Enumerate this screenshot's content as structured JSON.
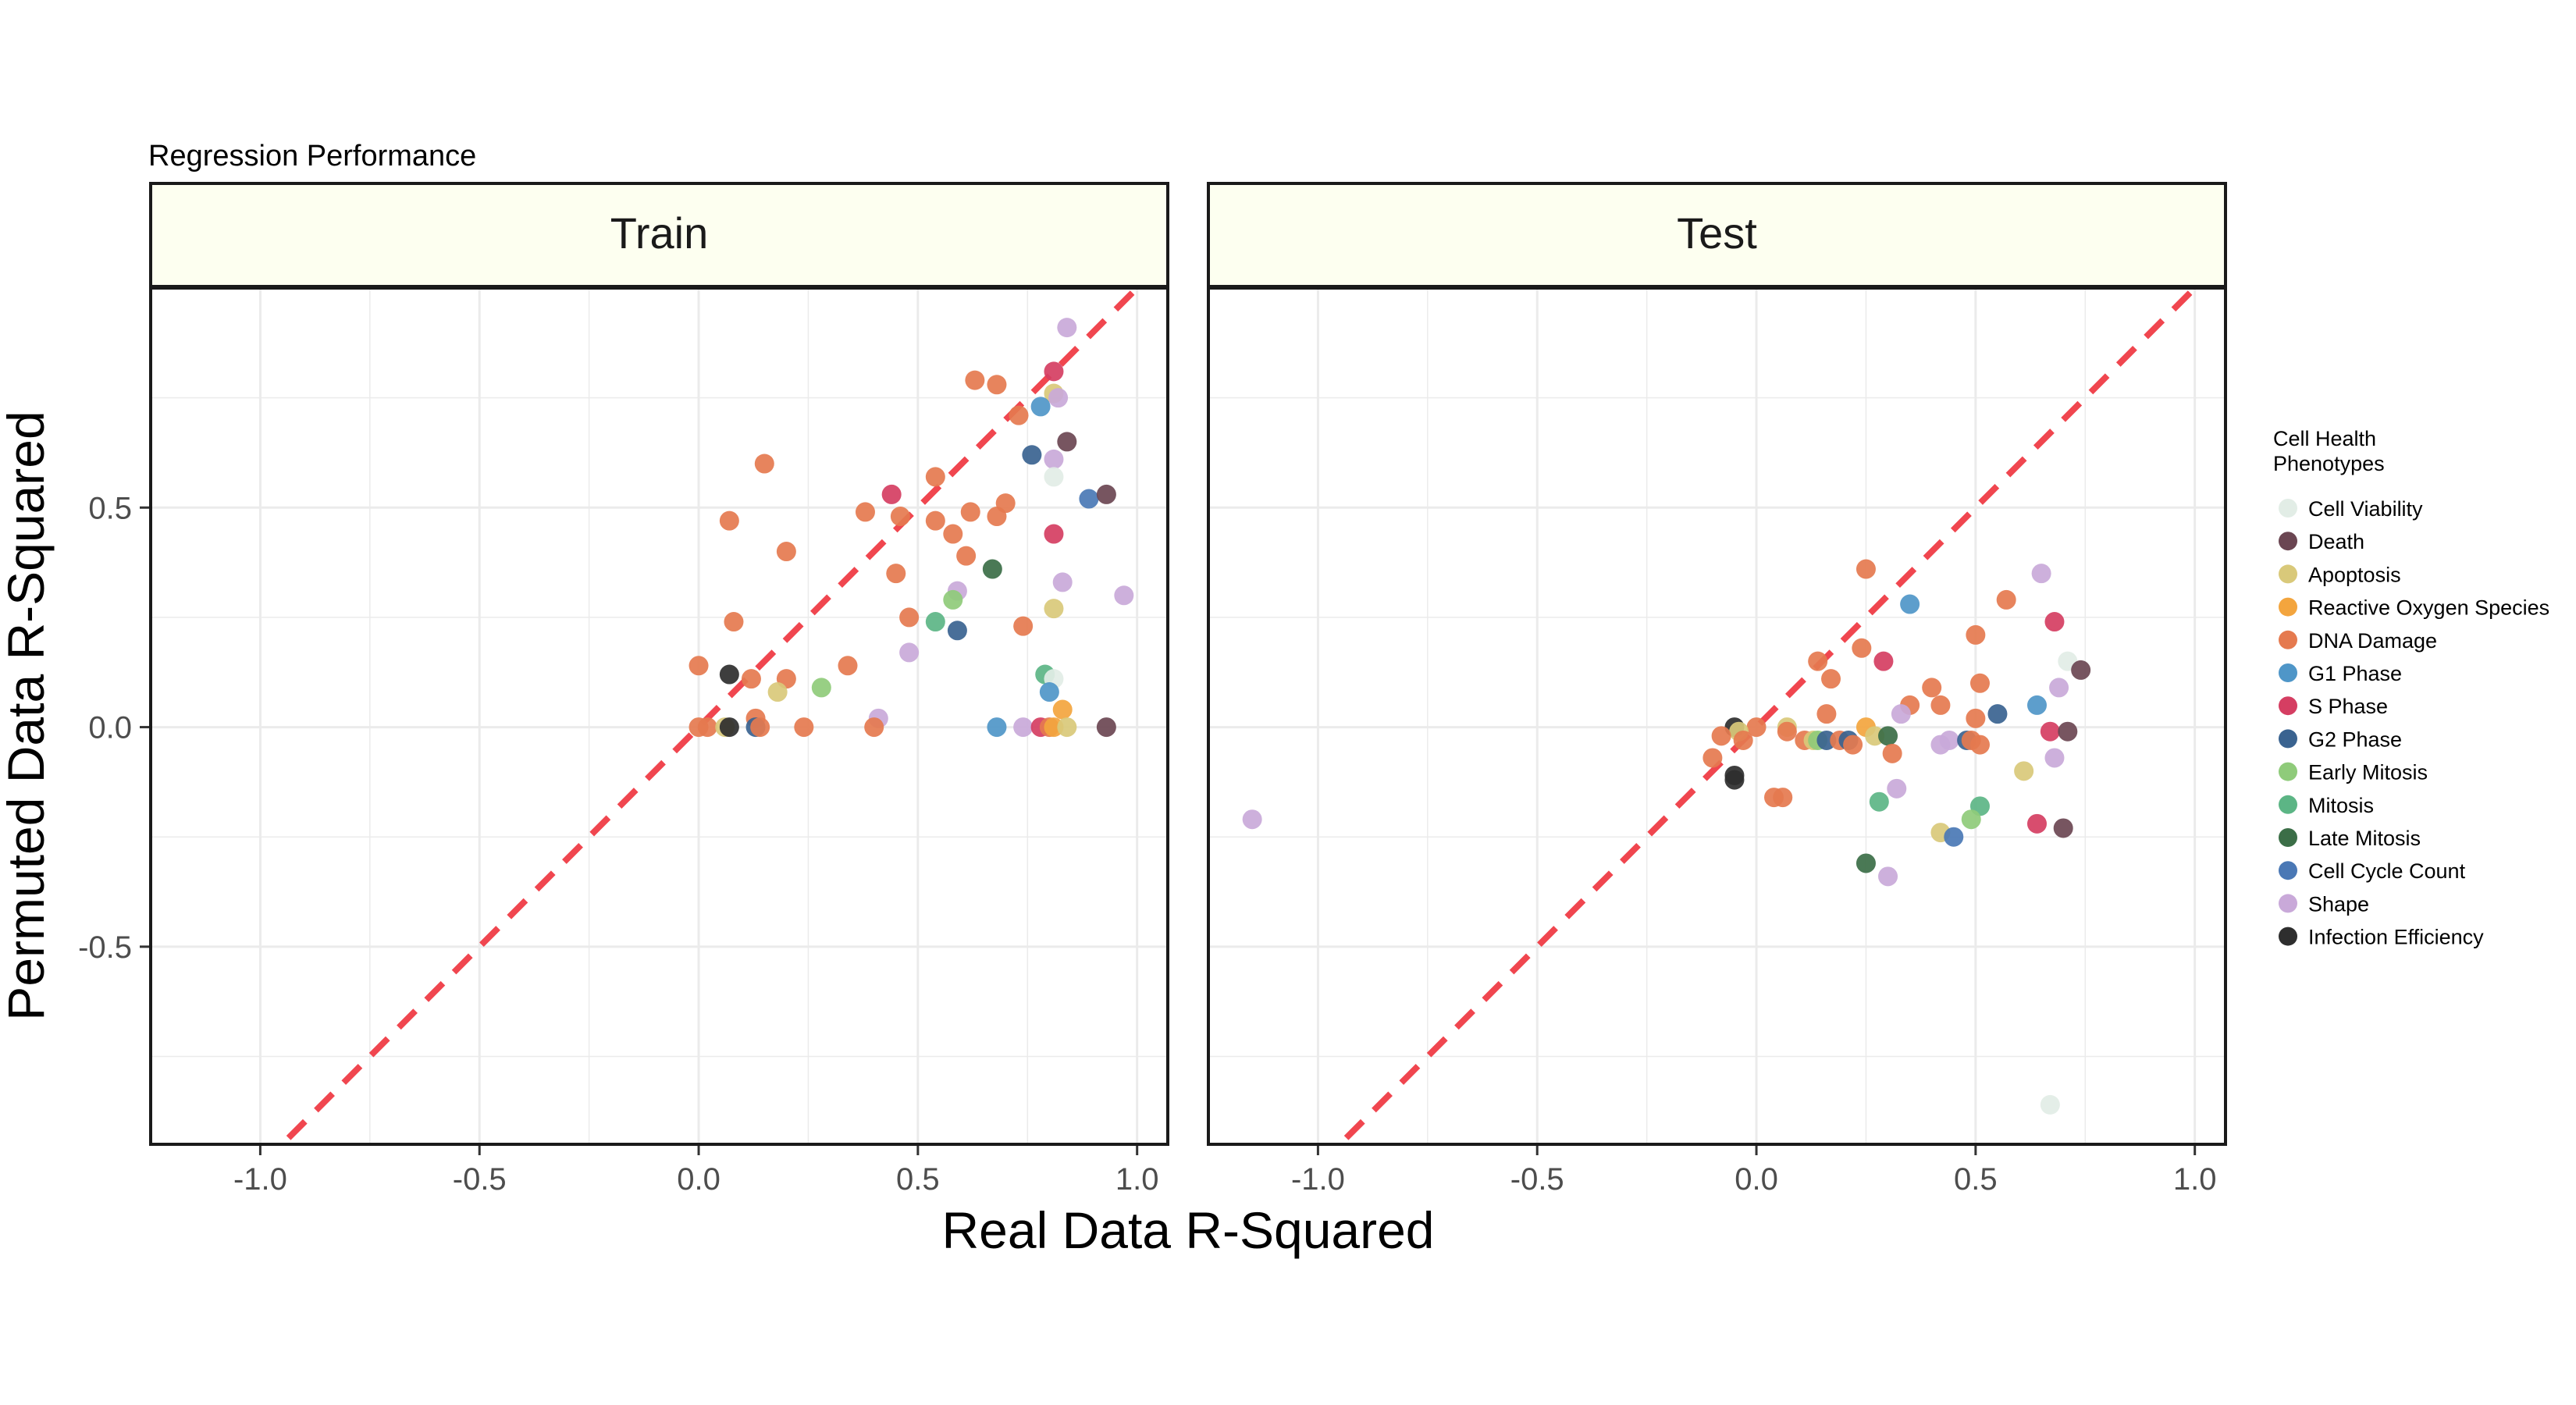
{
  "chart_data": {
    "type": "scatter",
    "title": "Regression Performance",
    "xlabel": "Real Data R-Squared",
    "ylabel": "Permuted Data R-Squared",
    "xlim": [
      -1.25,
      1.07
    ],
    "ylim": [
      -0.95,
      1.0
    ],
    "x_ticks": [
      -1.0,
      -0.5,
      0.0,
      0.5,
      1.0
    ],
    "x_tick_labels": [
      "-1.0",
      "-0.5",
      "0.0",
      "0.5",
      "1.0"
    ],
    "y_ticks": [
      -0.5,
      0.0,
      0.5
    ],
    "y_tick_labels": [
      "-0.5",
      "0.0",
      "0.5"
    ],
    "grid": true,
    "reference_line": {
      "slope": 1,
      "intercept": 0,
      "style": "dashed",
      "color": "#f0464f"
    },
    "strip_fill": "#fdfff0",
    "legend": {
      "title_lines": [
        "Cell Health",
        "Phenotypes"
      ],
      "position": "right",
      "entries": [
        {
          "label": "Cell Viability",
          "color": "#e2ede6"
        },
        {
          "label": "Death",
          "color": "#6b4652"
        },
        {
          "label": "Apoptosis",
          "color": "#d9c97a"
        },
        {
          "label": "Reactive Oxygen Species",
          "color": "#f3a53e"
        },
        {
          "label": "DNA Damage",
          "color": "#e57a4f"
        },
        {
          "label": "G1 Phase",
          "color": "#4f96c8"
        },
        {
          "label": "S Phase",
          "color": "#d53e62"
        },
        {
          "label": "G2 Phase",
          "color": "#3a6390"
        },
        {
          "label": "Early Mitosis",
          "color": "#8fcb7a"
        },
        {
          "label": "Mitosis",
          "color": "#5cb585"
        },
        {
          "label": "Late Mitosis",
          "color": "#3b6e47"
        },
        {
          "label": "Cell Cycle Count",
          "color": "#4a78b5"
        },
        {
          "label": "Shape",
          "color": "#c9a9d9"
        },
        {
          "label": "Infection Efficiency",
          "color": "#2e2e2e"
        }
      ]
    },
    "panels": [
      {
        "name": "Train",
        "points": [
          [
            0.84,
            0.91,
            "Shape"
          ],
          [
            0.81,
            0.81,
            "S Phase"
          ],
          [
            0.81,
            0.76,
            "Apoptosis"
          ],
          [
            0.82,
            0.75,
            "Shape"
          ],
          [
            0.78,
            0.73,
            "G1 Phase"
          ],
          [
            0.76,
            0.62,
            "G2 Phase"
          ],
          [
            0.81,
            0.61,
            "Shape"
          ],
          [
            0.84,
            0.65,
            "Death"
          ],
          [
            0.81,
            0.57,
            "Cell Viability"
          ],
          [
            0.63,
            0.79,
            "DNA Damage"
          ],
          [
            0.68,
            0.78,
            "DNA Damage"
          ],
          [
            0.73,
            0.71,
            "DNA Damage"
          ],
          [
            0.15,
            0.6,
            "DNA Damage"
          ],
          [
            0.07,
            0.47,
            "DNA Damage"
          ],
          [
            0.2,
            0.4,
            "DNA Damage"
          ],
          [
            0.08,
            0.24,
            "DNA Damage"
          ],
          [
            0.0,
            0.14,
            "DNA Damage"
          ],
          [
            0.12,
            0.11,
            "DNA Damage"
          ],
          [
            0.2,
            0.11,
            "DNA Damage"
          ],
          [
            0.34,
            0.14,
            "DNA Damage"
          ],
          [
            0.38,
            0.49,
            "DNA Damage"
          ],
          [
            0.44,
            0.53,
            "S Phase"
          ],
          [
            0.46,
            0.48,
            "DNA Damage"
          ],
          [
            0.54,
            0.57,
            "DNA Damage"
          ],
          [
            0.54,
            0.47,
            "DNA Damage"
          ],
          [
            0.58,
            0.44,
            "DNA Damage"
          ],
          [
            0.62,
            0.49,
            "DNA Damage"
          ],
          [
            0.68,
            0.48,
            "DNA Damage"
          ],
          [
            0.7,
            0.51,
            "DNA Damage"
          ],
          [
            0.61,
            0.39,
            "DNA Damage"
          ],
          [
            0.45,
            0.35,
            "DNA Damage"
          ],
          [
            0.48,
            0.25,
            "DNA Damage"
          ],
          [
            0.74,
            0.23,
            "DNA Damage"
          ],
          [
            0.81,
            0.44,
            "S Phase"
          ],
          [
            0.89,
            0.52,
            "Cell Cycle Count"
          ],
          [
            0.93,
            0.53,
            "Death"
          ],
          [
            0.97,
            0.3,
            "Shape"
          ],
          [
            0.83,
            0.33,
            "Shape"
          ],
          [
            0.59,
            0.31,
            "Shape"
          ],
          [
            0.58,
            0.29,
            "Early Mitosis"
          ],
          [
            0.54,
            0.24,
            "Mitosis"
          ],
          [
            0.67,
            0.36,
            "Late Mitosis"
          ],
          [
            0.59,
            0.22,
            "G2 Phase"
          ],
          [
            0.81,
            0.27,
            "Apoptosis"
          ],
          [
            0.48,
            0.17,
            "Shape"
          ],
          [
            0.28,
            0.09,
            "Early Mitosis"
          ],
          [
            0.18,
            0.08,
            "Apoptosis"
          ],
          [
            0.07,
            0.12,
            "Infection Efficiency"
          ],
          [
            0.79,
            0.12,
            "Mitosis"
          ],
          [
            0.81,
            0.11,
            "Cell Viability"
          ],
          [
            0.8,
            0.08,
            "G1 Phase"
          ],
          [
            0.83,
            0.04,
            "Reactive Oxygen Species"
          ],
          [
            0.41,
            0.02,
            "Shape"
          ],
          [
            0.13,
            0.02,
            "DNA Damage"
          ],
          [
            0.0,
            0.0,
            "DNA Damage"
          ],
          [
            0.02,
            0.0,
            "DNA Damage"
          ],
          [
            0.06,
            0.0,
            "Apoptosis"
          ],
          [
            0.07,
            0.0,
            "Infection Efficiency"
          ],
          [
            0.13,
            0.0,
            "G2 Phase"
          ],
          [
            0.14,
            0.0,
            "DNA Damage"
          ],
          [
            0.24,
            0.0,
            "DNA Damage"
          ],
          [
            0.4,
            0.0,
            "DNA Damage"
          ],
          [
            0.68,
            0.0,
            "G1 Phase"
          ],
          [
            0.74,
            0.0,
            "Shape"
          ],
          [
            0.78,
            0.0,
            "S Phase"
          ],
          [
            0.8,
            0.0,
            "DNA Damage"
          ],
          [
            0.81,
            0.0,
            "Reactive Oxygen Species"
          ],
          [
            0.84,
            0.0,
            "Apoptosis"
          ],
          [
            0.93,
            0.0,
            "Death"
          ]
        ]
      },
      {
        "name": "Test",
        "points": [
          [
            -1.15,
            -0.21,
            "Shape"
          ],
          [
            0.67,
            -0.86,
            "Cell Viability"
          ],
          [
            0.25,
            0.36,
            "DNA Damage"
          ],
          [
            0.35,
            0.28,
            "G1 Phase"
          ],
          [
            0.57,
            0.29,
            "DNA Damage"
          ],
          [
            0.65,
            0.35,
            "Shape"
          ],
          [
            0.68,
            0.24,
            "S Phase"
          ],
          [
            0.5,
            0.21,
            "DNA Damage"
          ],
          [
            0.71,
            0.15,
            "Cell Viability"
          ],
          [
            0.74,
            0.13,
            "Death"
          ],
          [
            0.69,
            0.09,
            "Shape"
          ],
          [
            0.64,
            0.05,
            "G1 Phase"
          ],
          [
            0.14,
            0.15,
            "DNA Damage"
          ],
          [
            0.24,
            0.18,
            "DNA Damage"
          ],
          [
            0.29,
            0.15,
            "S Phase"
          ],
          [
            0.17,
            0.11,
            "DNA Damage"
          ],
          [
            0.4,
            0.09,
            "DNA Damage"
          ],
          [
            0.51,
            0.1,
            "DNA Damage"
          ],
          [
            0.35,
            0.05,
            "DNA Damage"
          ],
          [
            0.42,
            0.05,
            "DNA Damage"
          ],
          [
            0.33,
            0.03,
            "Shape"
          ],
          [
            0.16,
            0.03,
            "DNA Damage"
          ],
          [
            0.55,
            0.03,
            "G2 Phase"
          ],
          [
            0.5,
            0.02,
            "DNA Damage"
          ],
          [
            0.67,
            -0.01,
            "S Phase"
          ],
          [
            0.71,
            -0.01,
            "Death"
          ],
          [
            0.0,
            0.0,
            "DNA Damage"
          ],
          [
            0.07,
            0.0,
            "Apoptosis"
          ],
          [
            0.07,
            -0.01,
            "DNA Damage"
          ],
          [
            0.25,
            0.0,
            "Reactive Oxygen Species"
          ],
          [
            0.27,
            -0.02,
            "Apoptosis"
          ],
          [
            0.3,
            -0.02,
            "Late Mitosis"
          ],
          [
            0.11,
            -0.03,
            "DNA Damage"
          ],
          [
            0.13,
            -0.03,
            "Apoptosis"
          ],
          [
            0.14,
            -0.03,
            "Early Mitosis"
          ],
          [
            0.16,
            -0.03,
            "G2 Phase"
          ],
          [
            0.19,
            -0.03,
            "DNA Damage"
          ],
          [
            0.21,
            -0.03,
            "G2 Phase"
          ],
          [
            0.22,
            -0.04,
            "DNA Damage"
          ],
          [
            0.42,
            -0.04,
            "Shape"
          ],
          [
            0.44,
            -0.03,
            "Shape"
          ],
          [
            0.48,
            -0.03,
            "G2 Phase"
          ],
          [
            0.49,
            -0.03,
            "DNA Damage"
          ],
          [
            0.51,
            -0.04,
            "DNA Damage"
          ],
          [
            -0.05,
            0.0,
            "Infection Efficiency"
          ],
          [
            -0.04,
            -0.01,
            "Apoptosis"
          ],
          [
            -0.03,
            -0.03,
            "DNA Damage"
          ],
          [
            -0.08,
            -0.02,
            "DNA Damage"
          ],
          [
            -0.1,
            -0.07,
            "DNA Damage"
          ],
          [
            -0.05,
            -0.11,
            "Infection Efficiency"
          ],
          [
            -0.05,
            -0.12,
            "Infection Efficiency"
          ],
          [
            0.31,
            -0.06,
            "DNA Damage"
          ],
          [
            0.04,
            -0.16,
            "DNA Damage"
          ],
          [
            0.06,
            -0.16,
            "DNA Damage"
          ],
          [
            0.28,
            -0.17,
            "Mitosis"
          ],
          [
            0.32,
            -0.14,
            "Shape"
          ],
          [
            0.61,
            -0.1,
            "Apoptosis"
          ],
          [
            0.68,
            -0.07,
            "Shape"
          ],
          [
            0.51,
            -0.18,
            "Mitosis"
          ],
          [
            0.49,
            -0.21,
            "Early Mitosis"
          ],
          [
            0.42,
            -0.24,
            "Apoptosis"
          ],
          [
            0.45,
            -0.25,
            "Cell Cycle Count"
          ],
          [
            0.64,
            -0.22,
            "S Phase"
          ],
          [
            0.7,
            -0.23,
            "Death"
          ],
          [
            0.25,
            -0.31,
            "Late Mitosis"
          ],
          [
            0.3,
            -0.34,
            "Shape"
          ]
        ]
      }
    ]
  }
}
